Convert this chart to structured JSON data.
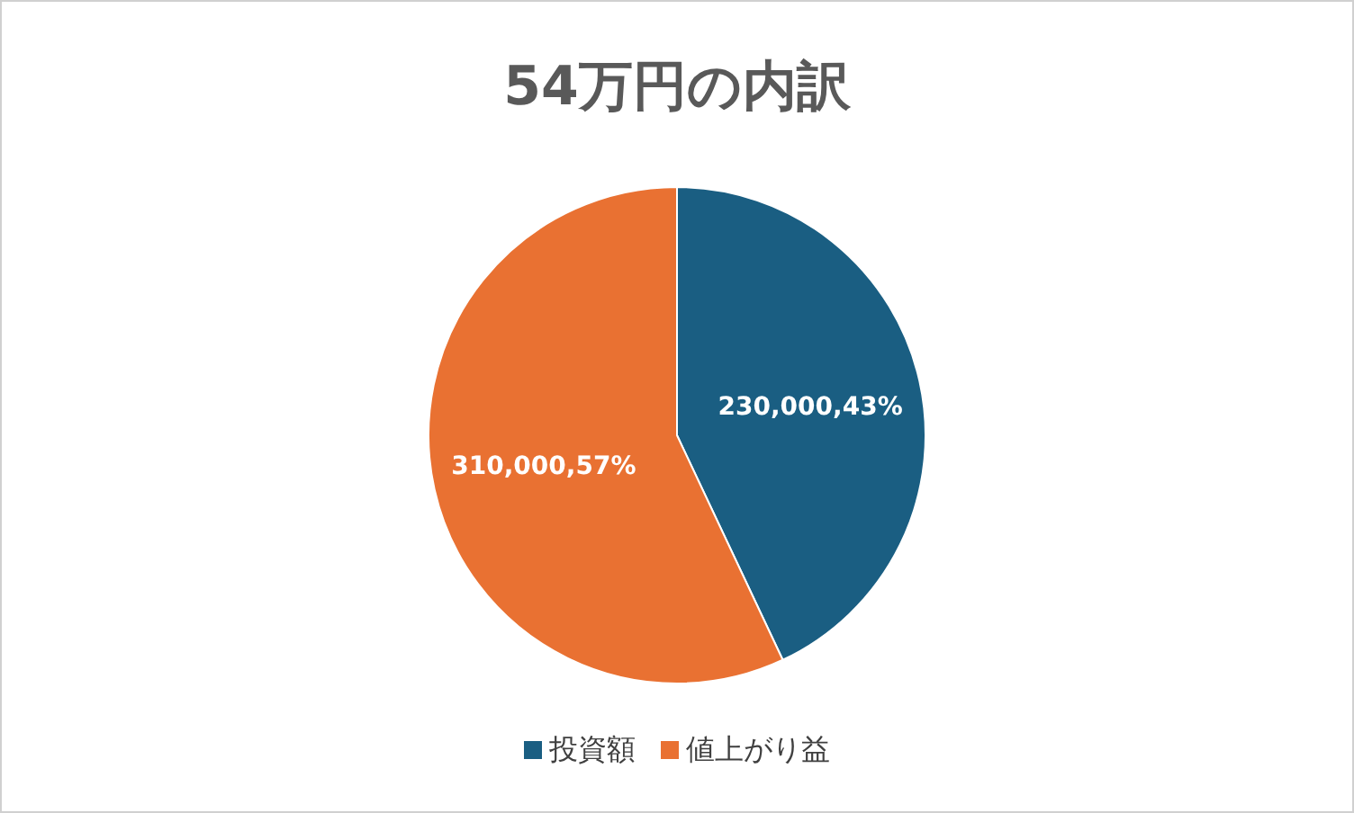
{
  "chart_data": {
    "type": "pie",
    "title": "54万円の内訳",
    "categories": [
      "投資額",
      "値上がり益"
    ],
    "values": [
      43,
      57
    ],
    "colors": [
      "#1a5e82",
      "#e97132"
    ],
    "value_labels": [
      "230,000,43%",
      "310,000,57%"
    ],
    "legend": "bottom"
  }
}
